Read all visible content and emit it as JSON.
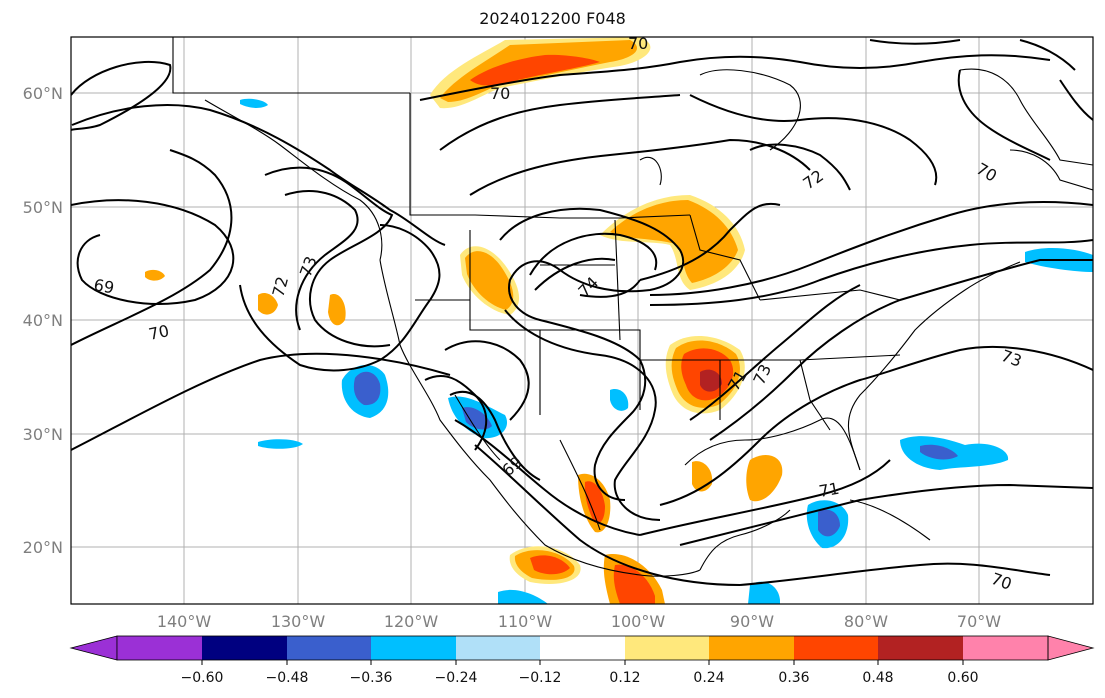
{
  "title": "2024012200 F048",
  "map": {
    "lon_range": [
      -150,
      -60
    ],
    "lat_range": [
      15,
      65
    ],
    "lon_ticks": [
      "140°W",
      "130°W",
      "120°W",
      "110°W",
      "100°W",
      "90°W",
      "80°W",
      "70°W"
    ],
    "lat_ticks": [
      "60°N",
      "50°N",
      "40°N",
      "30°N",
      "20°N"
    ],
    "gridlines": true
  },
  "contour_labels": [
    "69",
    "70",
    "72",
    "73",
    "74",
    "71",
    "73",
    "69",
    "70",
    "71",
    "70",
    "73",
    "72",
    "70",
    "70"
  ],
  "colorbar": {
    "ticks": [
      "−0.60",
      "−0.48",
      "−0.36",
      "−0.24",
      "−0.12",
      "0.12",
      "0.24",
      "0.36",
      "0.48",
      "0.60"
    ],
    "colors": [
      "#9b30d6",
      "#000080",
      "#3a5fcd",
      "#00bfff",
      "#b0e0f8",
      "#ffffff",
      "#ffe87c",
      "#ffa500",
      "#ff4500",
      "#b22222",
      "#ff82ab"
    ],
    "extend": "both"
  }
}
